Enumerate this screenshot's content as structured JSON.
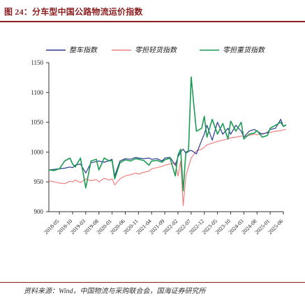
{
  "figure": {
    "title": "图 24：分车型中国公路物流运价指数",
    "source": "资料来源：Wind，中国物流与采购联合会，国海证券研究所"
  },
  "chart_data": {
    "type": "line",
    "title": "",
    "xlabel": "",
    "ylabel": "",
    "ylim": [
      900,
      1150
    ],
    "yticks": [
      900,
      950,
      1000,
      1050,
      1100,
      1150
    ],
    "x_tick_labels": [
      "2018-05",
      "2018-10",
      "2019-03",
      "2019-08",
      "2020-01",
      "2020-06",
      "2020-11",
      "2021-04",
      "2021-09",
      "2022-02",
      "2022-07",
      "2022-12",
      "2023-05",
      "2023-10",
      "2024-03",
      "2024-08",
      "2025-01",
      "2025-06"
    ],
    "legend": [
      "整车指数",
      "零担轻货指数",
      "零担重货指数"
    ],
    "legend_position": "top",
    "colors": [
      "#2b3a8f",
      "#f08080",
      "#1a9c52"
    ],
    "x": [
      "2018-01",
      "2018-03",
      "2018-05",
      "2018-07",
      "2018-09",
      "2018-10",
      "2018-11",
      "2019-01",
      "2019-03",
      "2019-05",
      "2019-07",
      "2019-08",
      "2019-10",
      "2019-12",
      "2020-01",
      "2020-02",
      "2020-04",
      "2020-06",
      "2020-08",
      "2020-10",
      "2020-11",
      "2021-01",
      "2021-03",
      "2021-04",
      "2021-06",
      "2021-08",
      "2021-09",
      "2021-11",
      "2022-01",
      "2022-02",
      "2022-03",
      "2022-04",
      "2022-05",
      "2022-06",
      "2022-07",
      "2022-09",
      "2022-11",
      "2022-12",
      "2023-01",
      "2023-03",
      "2023-05",
      "2023-07",
      "2023-09",
      "2023-10",
      "2023-12",
      "2024-02",
      "2024-03",
      "2024-05",
      "2024-07",
      "2024-08",
      "2024-10",
      "2024-12",
      "2025-01",
      "2025-03",
      "2025-05",
      "2025-06",
      "2025-07"
    ],
    "series": [
      {
        "name": "整车指数",
        "values": [
          970,
          971,
          972,
          973,
          975,
          974,
          978,
          980,
          965,
          982,
          984,
          985,
          983,
          986,
          988,
          960,
          985,
          989,
          988,
          991,
          990,
          989,
          990,
          988,
          989,
          985,
          990,
          991,
          978,
          992,
          1000,
          1005,
          998,
          1001,
          1003,
          997,
          1020,
          1030,
          1045,
          1020,
          1050,
          1030,
          1040,
          1030,
          1045,
          1035,
          1025,
          1035,
          1038,
          1035,
          1030,
          1033,
          1038,
          1040,
          1055,
          1043,
          1045
        ]
      },
      {
        "name": "零担轻货指数",
        "values": [
          952,
          950,
          948,
          947,
          951,
          950,
          953,
          949,
          955,
          952,
          954,
          950,
          956,
          953,
          955,
          945,
          955,
          960,
          962,
          965,
          963,
          966,
          968,
          972,
          974,
          976,
          978,
          980,
          982,
          960,
          985,
          910,
          960,
          975,
          990,
          1002,
          1005,
          1008,
          1012,
          1015,
          1018,
          1020,
          1022,
          1024,
          1025,
          1027,
          1026,
          1028,
          1030,
          1029,
          1031,
          1032,
          1033,
          1035,
          1036,
          1037,
          1038
        ]
      },
      {
        "name": "零担重货指数",
        "values": [
          970,
          969,
          972,
          985,
          990,
          980,
          975,
          990,
          940,
          985,
          988,
          970,
          990,
          985,
          986,
          955,
          982,
          987,
          985,
          989,
          988,
          986,
          978,
          985,
          986,
          983,
          987,
          990,
          960,
          995,
          1005,
          935,
          1000,
          1002,
          1126,
          1035,
          1040,
          1060,
          1025,
          1055,
          1030,
          1048,
          1022,
          1052,
          1035,
          1050,
          1022,
          1030,
          1032,
          1036,
          1025,
          1028,
          1040,
          1045,
          1050,
          1043,
          1046
        ]
      }
    ]
  }
}
